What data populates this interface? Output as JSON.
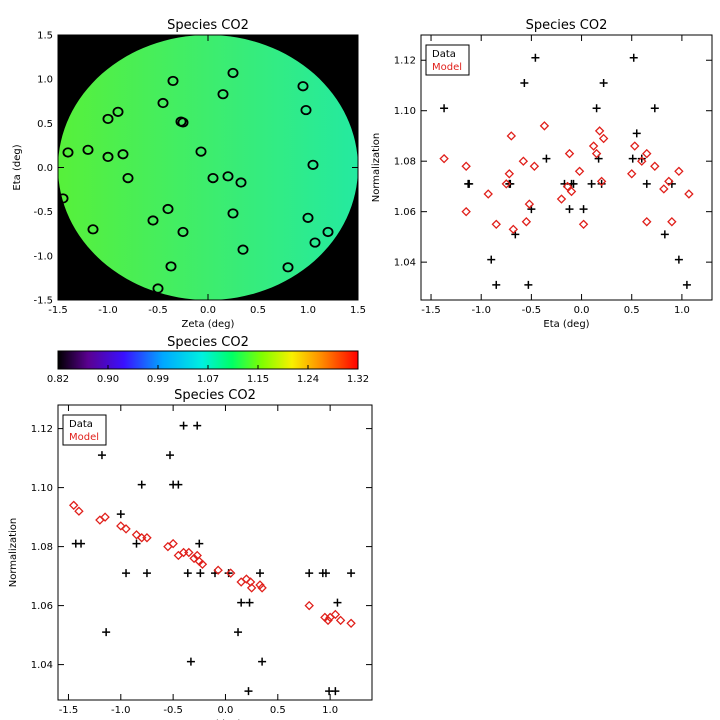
{
  "colors": {
    "data": "#000000",
    "model": "#e0201b",
    "background": "#000000"
  },
  "chart_data": [
    {
      "id": "map",
      "type": "heatmap",
      "title": "Species CO2",
      "xlabel": "Zeta (deg)",
      "ylabel": "Eta (deg)",
      "xlim": [
        -1.5,
        1.5
      ],
      "ylim": [
        -1.5,
        1.5
      ],
      "xticks": [
        "-1.5",
        "-1.0",
        "-0.5",
        "0.0",
        "0.5",
        "1.0",
        "1.5"
      ],
      "yticks": [
        "-1.5",
        "-1.0",
        "-0.5",
        "0.0",
        "0.5",
        "1.0",
        "1.5"
      ],
      "field_radius_deg": 1.5,
      "field_color_left": "#57f03a",
      "field_color_right": "#24eaa0",
      "points": [
        [
          -1.45,
          -0.35
        ],
        [
          -1.4,
          0.17
        ],
        [
          -1.2,
          0.2
        ],
        [
          -1.15,
          -0.7
        ],
        [
          -1.0,
          0.55
        ],
        [
          -1.0,
          0.12
        ],
        [
          -0.9,
          0.63
        ],
        [
          -0.85,
          0.15
        ],
        [
          -0.8,
          -0.12
        ],
        [
          -0.55,
          -0.6
        ],
        [
          -0.5,
          -1.37
        ],
        [
          -0.45,
          0.73
        ],
        [
          -0.4,
          -0.47
        ],
        [
          -0.37,
          -1.12
        ],
        [
          -0.35,
          0.98
        ],
        [
          -0.27,
          0.52
        ],
        [
          -0.25,
          0.51
        ],
        [
          -0.25,
          -0.73
        ],
        [
          -0.07,
          0.18
        ],
        [
          0.05,
          -0.12
        ],
        [
          0.15,
          0.83
        ],
        [
          0.2,
          -0.1
        ],
        [
          0.25,
          1.07
        ],
        [
          0.25,
          -0.52
        ],
        [
          0.33,
          -0.17
        ],
        [
          0.35,
          -0.93
        ],
        [
          0.8,
          -1.13
        ],
        [
          0.95,
          0.92
        ],
        [
          0.98,
          0.65
        ],
        [
          1.0,
          -0.57
        ],
        [
          1.05,
          0.03
        ],
        [
          1.07,
          -0.85
        ],
        [
          1.2,
          -0.73
        ]
      ]
    },
    {
      "id": "eta",
      "type": "scatter",
      "title": "Species CO2",
      "xlabel": "Eta (deg)",
      "ylabel": "Normalization",
      "xlim": [
        -1.6,
        1.3
      ],
      "ylim": [
        1.025,
        1.13
      ],
      "xticks": [
        "-1.5",
        "-1.0",
        "-0.5",
        "0.0",
        "0.5",
        "1.0"
      ],
      "yticks": [
        "1.04",
        "1.06",
        "1.08",
        "1.10",
        "1.12"
      ],
      "legend": [
        "Data",
        "Model"
      ],
      "legend_position": "top-left",
      "series": [
        {
          "name": "Data",
          "marker": "plus",
          "points": [
            [
              -1.37,
              1.101
            ],
            [
              -1.13,
              1.071
            ],
            [
              -1.12,
              1.071
            ],
            [
              -0.9,
              1.041
            ],
            [
              -0.85,
              1.031
            ],
            [
              -0.72,
              1.071
            ],
            [
              -0.71,
              1.071
            ],
            [
              -0.66,
              1.051
            ],
            [
              -0.57,
              1.111
            ],
            [
              -0.53,
              1.031
            ],
            [
              -0.5,
              1.061
            ],
            [
              -0.46,
              1.121
            ],
            [
              -0.35,
              1.081
            ],
            [
              -0.17,
              1.071
            ],
            [
              -0.12,
              1.061
            ],
            [
              -0.1,
              1.071
            ],
            [
              -0.08,
              1.071
            ],
            [
              0.02,
              1.061
            ],
            [
              0.1,
              1.071
            ],
            [
              0.15,
              1.101
            ],
            [
              0.17,
              1.081
            ],
            [
              0.2,
              1.071
            ],
            [
              0.22,
              1.111
            ],
            [
              0.51,
              1.081
            ],
            [
              0.52,
              1.121
            ],
            [
              0.55,
              1.091
            ],
            [
              0.6,
              1.081
            ],
            [
              0.65,
              1.071
            ],
            [
              0.73,
              1.101
            ],
            [
              0.83,
              1.051
            ],
            [
              0.9,
              1.071
            ],
            [
              0.97,
              1.041
            ],
            [
              1.05,
              1.031
            ]
          ]
        },
        {
          "name": "Model",
          "marker": "diamond",
          "points": [
            [
              -1.37,
              1.081
            ],
            [
              -1.15,
              1.078
            ],
            [
              -1.15,
              1.06
            ],
            [
              -0.93,
              1.067
            ],
            [
              -0.85,
              1.055
            ],
            [
              -0.75,
              1.071
            ],
            [
              -0.72,
              1.075
            ],
            [
              -0.7,
              1.09
            ],
            [
              -0.68,
              1.053
            ],
            [
              -0.58,
              1.08
            ],
            [
              -0.55,
              1.056
            ],
            [
              -0.52,
              1.063
            ],
            [
              -0.47,
              1.078
            ],
            [
              -0.37,
              1.094
            ],
            [
              -0.2,
              1.065
            ],
            [
              -0.14,
              1.07
            ],
            [
              -0.12,
              1.083
            ],
            [
              -0.1,
              1.068
            ],
            [
              -0.02,
              1.076
            ],
            [
              0.02,
              1.055
            ],
            [
              0.12,
              1.086
            ],
            [
              0.15,
              1.083
            ],
            [
              0.18,
              1.092
            ],
            [
              0.2,
              1.072
            ],
            [
              0.22,
              1.089
            ],
            [
              0.5,
              1.075
            ],
            [
              0.53,
              1.086
            ],
            [
              0.6,
              1.08
            ],
            [
              0.65,
              1.083
            ],
            [
              0.65,
              1.056
            ],
            [
              0.73,
              1.078
            ],
            [
              0.82,
              1.069
            ],
            [
              0.87,
              1.072
            ],
            [
              0.9,
              1.056
            ],
            [
              0.97,
              1.076
            ],
            [
              1.07,
              1.067
            ]
          ]
        }
      ]
    },
    {
      "id": "colorbar",
      "type": "heatmap",
      "title": "Species CO2",
      "range": [
        0.82,
        1.32
      ],
      "tick_labels": [
        "0.82",
        "0.90",
        "0.99",
        "1.07",
        "1.15",
        "1.24",
        "1.32"
      ]
    },
    {
      "id": "zeta",
      "type": "scatter",
      "title": "Species CO2",
      "xlabel": "Zeta (deg)",
      "ylabel": "Normalization",
      "xlim": [
        -1.6,
        1.4
      ],
      "ylim": [
        1.028,
        1.128
      ],
      "xticks": [
        "-1.5",
        "-1.0",
        "-0.5",
        "0.0",
        "0.5",
        "1.0"
      ],
      "yticks": [
        "1.04",
        "1.06",
        "1.08",
        "1.10",
        "1.12"
      ],
      "legend": [
        "Data",
        "Model"
      ],
      "legend_position": "top-left",
      "series": [
        {
          "name": "Data",
          "marker": "plus",
          "points": [
            [
              -1.43,
              1.081
            ],
            [
              -1.38,
              1.081
            ],
            [
              -1.18,
              1.111
            ],
            [
              -1.14,
              1.051
            ],
            [
              -1.0,
              1.091
            ],
            [
              -0.95,
              1.071
            ],
            [
              -0.85,
              1.081
            ],
            [
              -0.8,
              1.101
            ],
            [
              -0.75,
              1.071
            ],
            [
              -0.53,
              1.111
            ],
            [
              -0.5,
              1.101
            ],
            [
              -0.45,
              1.101
            ],
            [
              -0.4,
              1.121
            ],
            [
              -0.36,
              1.071
            ],
            [
              -0.33,
              1.041
            ],
            [
              -0.27,
              1.121
            ],
            [
              -0.25,
              1.081
            ],
            [
              -0.24,
              1.071
            ],
            [
              -0.1,
              1.071
            ],
            [
              0.03,
              1.071
            ],
            [
              0.12,
              1.051
            ],
            [
              0.15,
              1.061
            ],
            [
              0.22,
              1.031
            ],
            [
              0.23,
              1.061
            ],
            [
              0.33,
              1.071
            ],
            [
              0.35,
              1.041
            ],
            [
              0.8,
              1.071
            ],
            [
              0.93,
              1.071
            ],
            [
              0.96,
              1.071
            ],
            [
              0.99,
              1.031
            ],
            [
              1.05,
              1.031
            ],
            [
              1.07,
              1.061
            ],
            [
              1.2,
              1.071
            ]
          ]
        },
        {
          "name": "Model",
          "marker": "diamond",
          "points": [
            [
              -1.45,
              1.094
            ],
            [
              -1.4,
              1.092
            ],
            [
              -1.2,
              1.089
            ],
            [
              -1.15,
              1.09
            ],
            [
              -1.0,
              1.087
            ],
            [
              -0.95,
              1.086
            ],
            [
              -0.85,
              1.084
            ],
            [
              -0.8,
              1.083
            ],
            [
              -0.75,
              1.083
            ],
            [
              -0.55,
              1.08
            ],
            [
              -0.5,
              1.081
            ],
            [
              -0.45,
              1.077
            ],
            [
              -0.4,
              1.078
            ],
            [
              -0.35,
              1.078
            ],
            [
              -0.3,
              1.076
            ],
            [
              -0.27,
              1.077
            ],
            [
              -0.25,
              1.075
            ],
            [
              -0.22,
              1.074
            ],
            [
              -0.07,
              1.072
            ],
            [
              0.05,
              1.071
            ],
            [
              0.15,
              1.068
            ],
            [
              0.2,
              1.069
            ],
            [
              0.24,
              1.068
            ],
            [
              0.25,
              1.066
            ],
            [
              0.33,
              1.067
            ],
            [
              0.35,
              1.066
            ],
            [
              0.8,
              1.06
            ],
            [
              0.95,
              1.056
            ],
            [
              0.98,
              1.055
            ],
            [
              1.0,
              1.056
            ],
            [
              1.05,
              1.057
            ],
            [
              1.1,
              1.055
            ],
            [
              1.2,
              1.054
            ]
          ]
        }
      ]
    }
  ]
}
